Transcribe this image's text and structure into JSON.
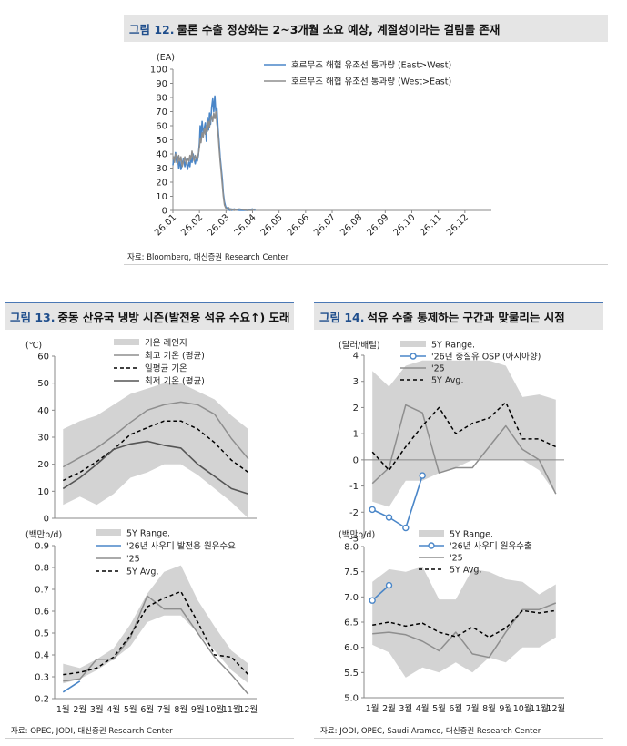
{
  "fig12": {
    "number": "그림 12.",
    "title": "물론 수출 정상화는 2~3개월 소요 예상, 계절성이라는 걸림돌 존재",
    "source": "자료: Bloomberg, 대신증권 Research Center"
  },
  "fig13": {
    "number": "그림 13.",
    "title": "중동 산유국 냉방 시즌(발전용 석유 수요↑) 도래",
    "source": "자료: OPEC, JODI, 대신증권 Research Center"
  },
  "fig14": {
    "number": "그림 14.",
    "title": "석유 수출 통제하는 구간과 맞물리는 시점",
    "source": "자료: JODI, OPEC, Saudi Aramco, 대신증권 Research Center"
  },
  "colors": {
    "blue": "#4a86c8",
    "gray_line": "#8e8e8e",
    "band": "#d3d3d3",
    "dark": "#555555",
    "black": "#000000",
    "header_accent": "#1f4e8c"
  },
  "chart_data": [
    {
      "id": "fig12",
      "type": "line",
      "title": "물론 수출 정상화는 2~3개월 소요 예상, 계절성이라는 걸림돌 존재",
      "ylabel": "(EA)",
      "ylim": [
        0,
        100
      ],
      "yticks": [
        0,
        10,
        20,
        30,
        40,
        50,
        60,
        70,
        80,
        90,
        100
      ],
      "xtick_labels": [
        "26.01",
        "26.02",
        "26.03",
        "26.04",
        "26.05",
        "26.06",
        "26.07",
        "26.08",
        "26.09",
        "26.10",
        "26.11",
        "26.12"
      ],
      "legend": [
        "호르무즈 해협 유조선 통과량 (East>West)",
        "호르무즈 해협 유조선 통과량 (West>East)"
      ],
      "series": [
        {
          "name": "호르무즈 해협 유조선 통과량 (East>West)",
          "style": "blue",
          "x": [
            0,
            0.03,
            0.06,
            0.1,
            0.14,
            0.18,
            0.22,
            0.26,
            0.3,
            0.35,
            0.4,
            0.45,
            0.5,
            0.55,
            0.6,
            0.64,
            0.68,
            0.72,
            0.76,
            0.8,
            0.84,
            0.88,
            0.92,
            0.96,
            1.0,
            1.03,
            1.06,
            1.1,
            1.14,
            1.18,
            1.22,
            1.26,
            1.3,
            1.34,
            1.38,
            1.42,
            1.46,
            1.5,
            1.54,
            1.58,
            1.62,
            1.66,
            1.7,
            1.74,
            1.78,
            1.82,
            1.86,
            1.9,
            1.94,
            1.98,
            2.02,
            2.06,
            2.1,
            2.14,
            2.18,
            2.22,
            2.3,
            2.5,
            2.8,
            3.0,
            3.1
          ],
          "y": [
            32,
            37,
            35,
            41,
            34,
            38,
            30,
            36,
            29,
            33,
            37,
            31,
            36,
            29,
            34,
            31,
            38,
            34,
            40,
            36,
            33,
            37,
            35,
            39,
            48,
            60,
            52,
            63,
            55,
            58,
            62,
            49,
            66,
            57,
            69,
            61,
            73,
            79,
            70,
            81,
            68,
            72,
            58,
            48,
            38,
            30,
            22,
            12,
            6,
            3,
            1,
            2,
            1,
            0,
            1,
            0,
            1,
            0,
            0,
            1,
            0
          ]
        },
        {
          "name": "호르무즈 해협 유조선 통과량 (West>East)",
          "style": "gray",
          "x": [
            0,
            0.03,
            0.06,
            0.1,
            0.14,
            0.18,
            0.22,
            0.26,
            0.3,
            0.35,
            0.4,
            0.45,
            0.5,
            0.55,
            0.6,
            0.64,
            0.68,
            0.72,
            0.76,
            0.8,
            0.84,
            0.88,
            0.92,
            0.96,
            1.0,
            1.03,
            1.06,
            1.1,
            1.14,
            1.18,
            1.22,
            1.26,
            1.3,
            1.34,
            1.38,
            1.42,
            1.46,
            1.5,
            1.54,
            1.58,
            1.62,
            1.66,
            1.7,
            1.74,
            1.78,
            1.82,
            1.86,
            1.9,
            1.94,
            1.98,
            2.02,
            2.06,
            2.1,
            2.14,
            2.18,
            2.22,
            2.3,
            2.5,
            2.8,
            3.0,
            3.1
          ],
          "y": [
            36,
            38,
            34,
            40,
            37,
            33,
            39,
            35,
            38,
            31,
            35,
            38,
            33,
            37,
            35,
            39,
            36,
            42,
            38,
            35,
            39,
            37,
            36,
            40,
            45,
            51,
            48,
            55,
            52,
            58,
            54,
            60,
            56,
            63,
            59,
            65,
            67,
            63,
            69,
            65,
            70,
            61,
            55,
            44,
            35,
            27,
            18,
            10,
            4,
            2,
            1,
            1,
            2,
            1,
            0,
            1,
            0,
            1,
            0,
            0,
            1
          ]
        }
      ]
    },
    {
      "id": "fig13-top",
      "type": "line",
      "ylabel": "(℃)",
      "ylim": [
        0,
        60
      ],
      "yticks": [
        0,
        10,
        20,
        30,
        40,
        50,
        60
      ],
      "categories": [
        "1월",
        "2월",
        "3월",
        "4월",
        "5월",
        "6월",
        "7월",
        "8월",
        "9월",
        "10월",
        "11월",
        "12월"
      ],
      "legend": [
        "기온 레인지",
        "최고 기온 (평균)",
        "일평균 기온",
        "최저 기온 (평균)"
      ],
      "range": {
        "name": "기온 레인지",
        "upper": [
          33,
          36,
          38,
          42,
          46,
          48,
          50,
          50,
          47,
          44,
          38,
          33
        ],
        "lower": [
          5,
          8,
          5,
          9,
          15,
          17,
          20,
          20,
          16,
          11,
          6,
          0
        ]
      },
      "series": [
        {
          "name": "최고 기온 (평균)",
          "style": "gray",
          "values": [
            19,
            22.5,
            26,
            30.5,
            35.5,
            40,
            42,
            43,
            42,
            38.5,
            29.5,
            22
          ]
        },
        {
          "name": "일평균 기온",
          "style": "dash",
          "values": [
            14,
            17,
            21,
            25.5,
            31,
            33.5,
            36,
            36,
            33,
            28,
            21.5,
            17
          ]
        },
        {
          "name": "최저 기온 (평균)",
          "style": "dark",
          "values": [
            11,
            15,
            20,
            25.5,
            27.5,
            28.5,
            27,
            26,
            20,
            15.5,
            11,
            9
          ]
        }
      ]
    },
    {
      "id": "fig13-bottom",
      "type": "line",
      "ylabel": "(백만b/d)",
      "ylim": [
        0.2,
        0.9
      ],
      "yticks": [
        0.2,
        0.3,
        0.4,
        0.5,
        0.6,
        0.7,
        0.8,
        0.9
      ],
      "categories": [
        "1월",
        "2월",
        "3월",
        "4월",
        "5월",
        "6월",
        "7월",
        "8월",
        "9월",
        "10월",
        "11월",
        "12월"
      ],
      "legend": [
        "5Y Range.",
        "'26년 사우디 발전용 원유수요",
        "'25",
        "5Y Avg."
      ],
      "range": {
        "name": "5Y Range.",
        "upper": [
          0.36,
          0.34,
          0.38,
          0.43,
          0.54,
          0.68,
          0.78,
          0.81,
          0.65,
          0.53,
          0.42,
          0.36
        ],
        "lower": [
          0.27,
          0.29,
          0.33,
          0.38,
          0.44,
          0.55,
          0.58,
          0.58,
          0.5,
          0.42,
          0.33,
          0.27
        ]
      },
      "series": [
        {
          "name": "'26년 사우디 발전용 원유수요",
          "style": "blue",
          "values": [
            0.23,
            0.28,
            null,
            null,
            null,
            null,
            null,
            null,
            null,
            null,
            null,
            null
          ]
        },
        {
          "name": "'25",
          "style": "gray",
          "values": [
            0.28,
            0.29,
            0.38,
            0.38,
            0.48,
            0.67,
            0.61,
            0.61,
            0.5,
            0.39,
            0.31,
            0.22
          ]
        },
        {
          "name": "5Y Avg.",
          "style": "dash",
          "values": [
            0.31,
            0.32,
            0.34,
            0.39,
            0.49,
            0.62,
            0.66,
            0.69,
            0.55,
            0.4,
            0.39,
            0.31
          ]
        }
      ]
    },
    {
      "id": "fig14-top",
      "type": "line",
      "ylabel": "(달러/배럴)",
      "ylim": [
        -3,
        4
      ],
      "yticks": [
        -3,
        -2,
        -1,
        0,
        1,
        2,
        3,
        4
      ],
      "categories": [
        "1월",
        "2월",
        "3월",
        "4월",
        "5월",
        "6월",
        "7월",
        "8월",
        "9월",
        "10월",
        "11월",
        "12월"
      ],
      "legend": [
        "5Y Range.",
        "'26년 중질유 OSP (아시아향)",
        "'25",
        "5Y Avg."
      ],
      "range": {
        "name": "5Y Range.",
        "upper": [
          3.4,
          2.8,
          3.6,
          3.8,
          3.8,
          3.8,
          3.8,
          3.8,
          3.6,
          2.4,
          2.5,
          2.3
        ],
        "lower": [
          -1.6,
          -1.8,
          -0.8,
          -0.8,
          -0.5,
          -0.3,
          0,
          0,
          0,
          0,
          -0.4,
          -1.3
        ]
      },
      "series": [
        {
          "name": "'26년 중질유 OSP (아시아향)",
          "style": "blue-marker",
          "values": [
            -1.9,
            -2.2,
            -2.6,
            -0.6,
            null,
            null,
            null,
            null,
            null,
            null,
            null,
            null
          ]
        },
        {
          "name": "'25",
          "style": "gray",
          "values": [
            -0.9,
            -0.3,
            2.1,
            1.8,
            -0.5,
            -0.3,
            -0.3,
            0.5,
            1.3,
            0.4,
            0,
            -1.3
          ]
        },
        {
          "name": "5Y Avg.",
          "style": "dash",
          "values": [
            0.3,
            -0.4,
            0.5,
            1.3,
            2.0,
            1.0,
            1.4,
            1.6,
            2.2,
            0.8,
            0.8,
            0.5
          ]
        }
      ]
    },
    {
      "id": "fig14-bottom",
      "type": "line",
      "ylabel": "(백만b/d)",
      "ylim": [
        5.0,
        8.0
      ],
      "yticks": [
        5.0,
        5.5,
        6.0,
        6.5,
        7.0,
        7.5,
        8.0
      ],
      "categories": [
        "1월",
        "2월",
        "3월",
        "4월",
        "5월",
        "6월",
        "7월",
        "8월",
        "9월",
        "10월",
        "11월",
        "12월"
      ],
      "legend": [
        "5Y Range.",
        "'26년 사우디 원유수출",
        "'25",
        "5Y Avg."
      ],
      "range": {
        "name": "5Y Range.",
        "upper": [
          7.3,
          7.55,
          7.5,
          7.6,
          6.95,
          6.95,
          7.55,
          7.5,
          7.35,
          7.3,
          7.05,
          7.25
        ],
        "lower": [
          6.05,
          5.9,
          5.4,
          5.6,
          5.5,
          5.7,
          5.5,
          5.8,
          5.7,
          6.0,
          6.0,
          6.2
        ]
      },
      "series": [
        {
          "name": "'26년 사우디 원유수출",
          "style": "blue-marker",
          "values": [
            6.93,
            7.23,
            null,
            null,
            null,
            null,
            null,
            null,
            null,
            null,
            null,
            null
          ]
        },
        {
          "name": "'25",
          "style": "gray",
          "values": [
            6.27,
            6.3,
            6.25,
            6.12,
            5.93,
            6.3,
            5.87,
            5.8,
            6.3,
            6.75,
            6.75,
            6.88
          ]
        },
        {
          "name": "5Y Avg.",
          "style": "dash",
          "values": [
            6.44,
            6.5,
            6.42,
            6.48,
            6.3,
            6.21,
            6.4,
            6.2,
            6.38,
            6.73,
            6.68,
            6.73
          ]
        }
      ]
    }
  ]
}
